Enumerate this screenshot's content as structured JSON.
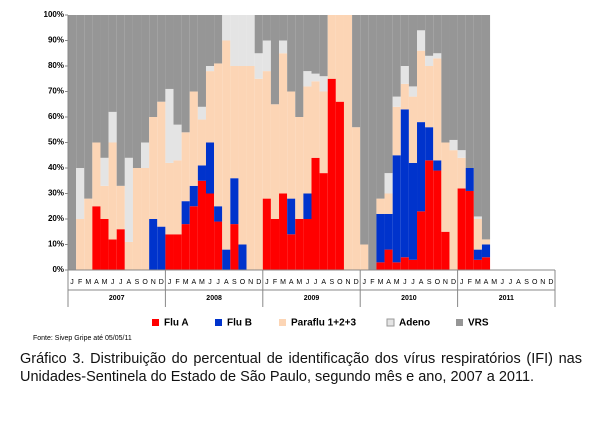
{
  "chart_data": {
    "type": "stacked_bar",
    "categories": [
      "J",
      "F",
      "M",
      "A",
      "M",
      "J",
      "J",
      "A",
      "S",
      "O",
      "N",
      "D",
      "J",
      "F",
      "M",
      "A",
      "M",
      "J",
      "J",
      "A",
      "S",
      "O",
      "N",
      "D",
      "J",
      "F",
      "M",
      "A",
      "M",
      "J",
      "J",
      "A",
      "S",
      "O",
      "N",
      "D",
      "J",
      "F",
      "M",
      "A",
      "M",
      "J",
      "J",
      "A",
      "S",
      "O",
      "N",
      "D",
      "J",
      "F",
      "M",
      "A",
      "M",
      "J",
      "J",
      "A",
      "S",
      "O",
      "N",
      "D"
    ],
    "years": [
      "2007",
      "2008",
      "2009",
      "2010",
      "2011"
    ],
    "series": [
      {
        "name": "Flu A",
        "color": "#ff0000",
        "values": [
          0,
          0,
          0,
          25,
          20,
          12,
          16,
          0,
          0,
          0,
          0,
          0,
          14,
          14,
          18,
          25,
          35,
          30,
          19,
          0,
          18,
          0,
          0,
          0,
          28,
          20,
          30,
          14,
          20,
          20,
          44,
          38,
          75,
          66,
          0,
          0,
          0,
          0,
          3,
          8,
          3,
          5,
          4,
          23,
          43,
          39,
          15,
          0,
          32,
          31,
          4,
          5,
          null,
          null,
          null,
          null,
          null,
          null,
          null,
          null
        ]
      },
      {
        "name": "Flu B",
        "color": "#0033cc",
        "values": [
          0,
          0,
          0,
          0,
          0,
          0,
          0,
          0,
          0,
          0,
          20,
          17,
          0,
          0,
          9,
          8,
          6,
          20,
          6,
          8,
          18,
          10,
          0,
          0,
          0,
          0,
          0,
          14,
          0,
          10,
          0,
          0,
          0,
          0,
          0,
          0,
          0,
          0,
          19,
          14,
          42,
          58,
          38,
          35,
          13,
          4,
          0,
          0,
          0,
          9,
          4,
          5,
          null,
          null,
          null,
          null,
          null,
          null,
          null,
          null
        ]
      },
      {
        "name": "Paraflu 1+2+3",
        "color": "#fcd5b5",
        "values": [
          0,
          20,
          28,
          25,
          13,
          38,
          17,
          11,
          40,
          40,
          40,
          49,
          28,
          29,
          27,
          37,
          18,
          28,
          56,
          82,
          44,
          70,
          80,
          75,
          50,
          45,
          55,
          42,
          40,
          42,
          30,
          32,
          25,
          34,
          100,
          56,
          10,
          0,
          6,
          8,
          19,
          10,
          26,
          28,
          24,
          40,
          35,
          47,
          12,
          0,
          12,
          2,
          null,
          null,
          null,
          null,
          null,
          null,
          null,
          null
        ]
      },
      {
        "name": "Adeno",
        "color": "#e4e4e4",
        "values": [
          0,
          20,
          0,
          0,
          11,
          12,
          0,
          33,
          0,
          10,
          0,
          0,
          29,
          14,
          0,
          0,
          5,
          2,
          0,
          10,
          20,
          20,
          20,
          10,
          12,
          0,
          5,
          0,
          0,
          6,
          3,
          6,
          0,
          0,
          0,
          0,
          0,
          0,
          0,
          8,
          4,
          7,
          4,
          8,
          4,
          2,
          0,
          4,
          3,
          0,
          1,
          0,
          null,
          null,
          null,
          null,
          null,
          null,
          null,
          null
        ]
      },
      {
        "name": "VRS",
        "color": "#969696",
        "values": [
          100,
          60,
          72,
          50,
          56,
          38,
          67,
          56,
          60,
          50,
          40,
          34,
          29,
          43,
          46,
          30,
          36,
          20,
          19,
          0,
          0,
          0,
          0,
          15,
          10,
          35,
          10,
          30,
          40,
          22,
          23,
          24,
          0,
          0,
          0,
          44,
          90,
          100,
          72,
          62,
          32,
          20,
          28,
          6,
          16,
          15,
          50,
          49,
          53,
          60,
          79,
          88,
          null,
          null,
          null,
          null,
          null,
          null,
          null,
          null
        ]
      }
    ],
    "ylim": [
      0,
      100
    ],
    "yticks": [
      {
        "value": 0,
        "label": "0%"
      },
      {
        "value": 10,
        "label": "10%"
      },
      {
        "value": 20,
        "label": "20%"
      },
      {
        "value": 30,
        "label": "30%"
      },
      {
        "value": 40,
        "label": "40%"
      },
      {
        "value": 50,
        "label": "50%"
      },
      {
        "value": 60,
        "label": "60%"
      },
      {
        "value": 70,
        "label": "70%"
      },
      {
        "value": 80,
        "label": "80%"
      },
      {
        "value": 90,
        "label": "90%"
      },
      {
        "value": 100,
        "label": "100%"
      }
    ],
    "source": "Fonte: Sivep Gripe até 05/05/11",
    "caption": "Gráfico 3. Distribuição do percentual de identificação dos vírus respiratórios (IFI) nas Unidades-Sentinela do Estado de São Paulo, segundo mês e ano, 2007 a 2011."
  }
}
